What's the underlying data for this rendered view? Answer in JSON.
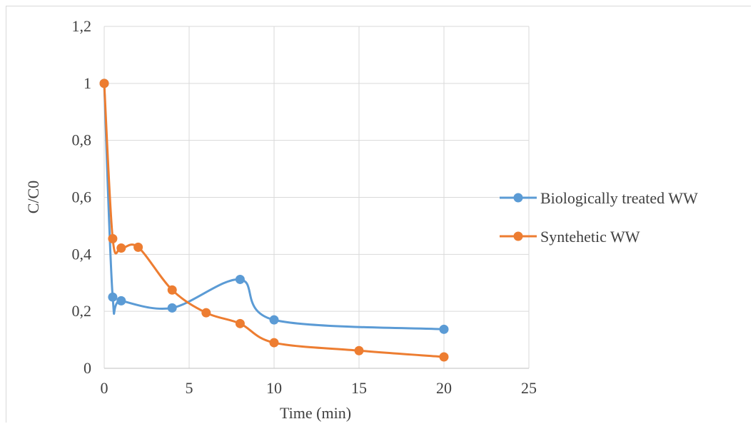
{
  "chart_data": {
    "type": "line",
    "title": "",
    "xlabel": "Time (min)",
    "ylabel": "C/C0",
    "xlim": [
      0,
      25
    ],
    "ylim": [
      0,
      1.2
    ],
    "x_ticks": [
      "0",
      "5",
      "10",
      "15",
      "20",
      "25"
    ],
    "y_ticks": [
      "0",
      "0,2",
      "0,4",
      "0,6",
      "0,8",
      "1",
      "1,2"
    ],
    "grid": true,
    "legend_position": "right",
    "smoothed": true,
    "series": [
      {
        "name": "Biologically treated WW",
        "color": "#5b9bd5",
        "points": [
          [
            0,
            1.0
          ],
          [
            0.5,
            0.25
          ],
          [
            1,
            0.237
          ],
          [
            4,
            0.212
          ],
          [
            8,
            0.312
          ],
          [
            10,
            0.17
          ],
          [
            20,
            0.137
          ]
        ]
      },
      {
        "name": "Syntehetic WW",
        "color": "#ed7d31",
        "points": [
          [
            0,
            1.0
          ],
          [
            0.5,
            0.455
          ],
          [
            1,
            0.422
          ],
          [
            2,
            0.425
          ],
          [
            4,
            0.275
          ],
          [
            6,
            0.195
          ],
          [
            8,
            0.157
          ],
          [
            10,
            0.09
          ],
          [
            15,
            0.062
          ],
          [
            20,
            0.04
          ]
        ]
      }
    ]
  }
}
